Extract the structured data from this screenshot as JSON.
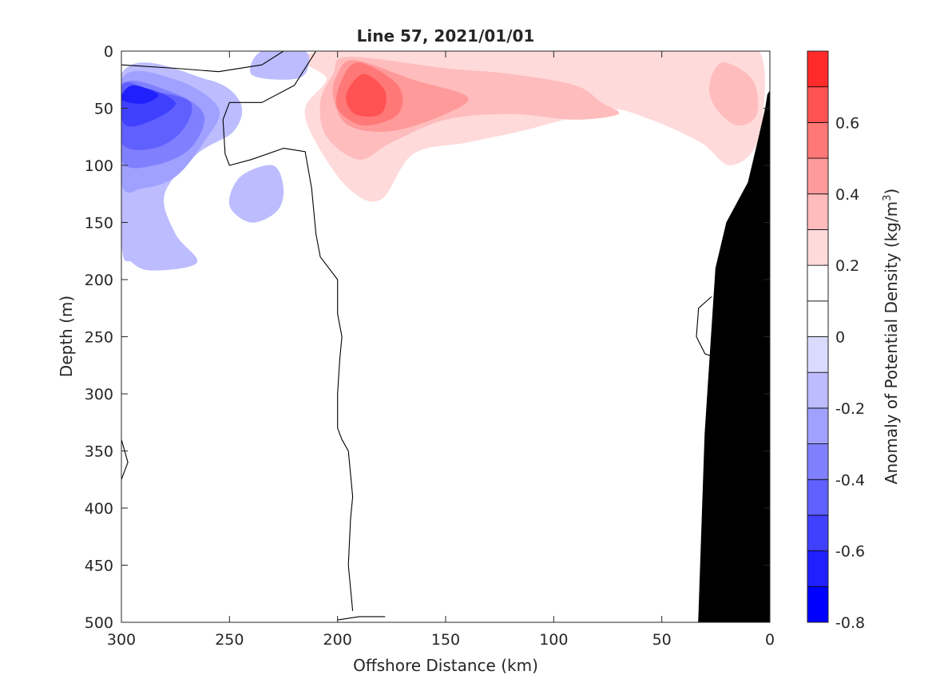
{
  "chart_data": {
    "type": "heatmap",
    "title": "Line 57, 2021/01/01",
    "xlabel": "Offshore Distance (km)",
    "ylabel": "Depth (m)",
    "xlim": [
      300,
      0
    ],
    "ylim": [
      500,
      0
    ],
    "x_reversed": true,
    "y_reversed": true,
    "xticks": [
      300,
      250,
      200,
      150,
      100,
      50,
      0
    ],
    "yticks": [
      0,
      50,
      100,
      150,
      200,
      250,
      300,
      350,
      400,
      450,
      500
    ],
    "grid": false,
    "colorbar": {
      "label": "Anomaly of Potential Density (kg/m",
      "label_superscript": "3",
      "label_close": ")",
      "range": [
        -0.8,
        0.8
      ],
      "ticks": [
        -0.8,
        -0.6,
        -0.4,
        -0.2,
        0,
        0.2,
        0.4,
        0.6
      ],
      "tick_labels": [
        "-0.8",
        "-0.6",
        "-0.4",
        "-0.2",
        "0",
        "0.2",
        "0.4",
        "0.6"
      ],
      "levels": [
        -0.8,
        -0.7,
        -0.6,
        -0.5,
        -0.4,
        -0.3,
        -0.2,
        -0.1,
        0,
        0.1,
        0.2,
        0.3,
        0.4,
        0.5,
        0.6,
        0.7,
        0.8
      ],
      "colors": [
        "#0000ff",
        "#2020ff",
        "#4040ff",
        "#6060ff",
        "#8080ff",
        "#a0a0ff",
        "#bcbcff",
        "#dadaff",
        "#ffffff",
        "#ffffff",
        "#ffdada",
        "#ffbcbc",
        "#ff9a9a",
        "#ff7878",
        "#ff5252",
        "#ff2a2a",
        "#ff0000"
      ]
    },
    "fields": [
      {
        "sign": "pos",
        "level": 0.1,
        "points": [
          [
            210,
            0
          ],
          [
            30,
            0
          ],
          [
            2,
            0
          ],
          [
            1,
            90
          ],
          [
            8,
            140
          ],
          [
            20,
            200
          ],
          [
            27,
            215
          ],
          [
            35,
            190
          ],
          [
            55,
            150
          ],
          [
            75,
            110
          ],
          [
            95,
            130
          ],
          [
            120,
            120
          ],
          [
            140,
            130
          ],
          [
            155,
            160
          ],
          [
            170,
            185
          ],
          [
            180,
            205
          ],
          [
            195,
            195
          ],
          [
            210,
            150
          ],
          [
            220,
            110
          ],
          [
            228,
            70
          ],
          [
            225,
            50
          ],
          [
            205,
            35
          ],
          [
            195,
            20
          ]
        ]
      },
      {
        "sign": "pos",
        "level": 0.2,
        "points": [
          [
            205,
            0
          ],
          [
            35,
            0
          ],
          [
            5,
            0
          ],
          [
            5,
            75
          ],
          [
            18,
            100
          ],
          [
            32,
            80
          ],
          [
            55,
            60
          ],
          [
            75,
            50
          ],
          [
            95,
            60
          ],
          [
            115,
            70
          ],
          [
            140,
            80
          ],
          [
            165,
            90
          ],
          [
            180,
            130
          ],
          [
            195,
            120
          ],
          [
            210,
            80
          ],
          [
            215,
            50
          ],
          [
            205,
            25
          ]
        ]
      },
      {
        "sign": "pos",
        "level": 0.3,
        "points": [
          [
            195,
            5
          ],
          [
            150,
            15
          ],
          [
            120,
            20
          ],
          [
            90,
            30
          ],
          [
            78,
            45
          ],
          [
            70,
            55
          ],
          [
            90,
            60
          ],
          [
            120,
            55
          ],
          [
            150,
            60
          ],
          [
            175,
            80
          ],
          [
            190,
            95
          ],
          [
            205,
            75
          ],
          [
            208,
            45
          ],
          [
            202,
            20
          ]
        ]
      },
      {
        "sign": "pos",
        "level": 0.3,
        "points": [
          [
            22,
            10
          ],
          [
            8,
            25
          ],
          [
            6,
            55
          ],
          [
            15,
            65
          ],
          [
            25,
            50
          ],
          [
            28,
            30
          ]
        ]
      },
      {
        "sign": "pos",
        "level": 0.4,
        "points": [
          [
            192,
            8
          ],
          [
            165,
            25
          ],
          [
            140,
            40
          ],
          [
            150,
            55
          ],
          [
            175,
            70
          ],
          [
            195,
            65
          ],
          [
            202,
            40
          ],
          [
            200,
            20
          ]
        ]
      },
      {
        "sign": "pos",
        "level": 0.5,
        "points": [
          [
            190,
            10
          ],
          [
            172,
            30
          ],
          [
            172,
            55
          ],
          [
            188,
            65
          ],
          [
            200,
            50
          ],
          [
            198,
            25
          ]
        ]
      },
      {
        "sign": "pos",
        "level": 0.6,
        "points": [
          [
            188,
            20
          ],
          [
            178,
            35
          ],
          [
            180,
            55
          ],
          [
            192,
            55
          ],
          [
            196,
            38
          ]
        ]
      },
      {
        "sign": "neg",
        "level": -0.1,
        "points": [
          [
            300,
            20
          ],
          [
            260,
            25
          ],
          [
            245,
            45
          ],
          [
            248,
            70
          ],
          [
            265,
            90
          ],
          [
            280,
            125
          ],
          [
            275,
            160
          ],
          [
            265,
            185
          ],
          [
            285,
            192
          ],
          [
            295,
            185
          ],
          [
            300,
            165
          ]
        ]
      },
      {
        "sign": "neg",
        "level": -0.1,
        "points": [
          [
            230,
            100
          ],
          [
            245,
            110
          ],
          [
            250,
            135
          ],
          [
            240,
            150
          ],
          [
            228,
            140
          ],
          [
            225,
            120
          ]
        ]
      },
      {
        "sign": "neg",
        "level": -0.1,
        "points": [
          [
            235,
            0
          ],
          [
            215,
            0
          ],
          [
            215,
            20
          ],
          [
            225,
            25
          ],
          [
            240,
            20
          ]
        ]
      },
      {
        "sign": "neg",
        "level": -0.2,
        "points": [
          [
            300,
            25
          ],
          [
            275,
            25
          ],
          [
            255,
            50
          ],
          [
            262,
            80
          ],
          [
            275,
            110
          ],
          [
            290,
            120
          ],
          [
            300,
            115
          ]
        ]
      },
      {
        "sign": "neg",
        "level": -0.3,
        "points": [
          [
            300,
            30
          ],
          [
            278,
            35
          ],
          [
            262,
            55
          ],
          [
            268,
            85
          ],
          [
            285,
            100
          ],
          [
            300,
            95
          ]
        ]
      },
      {
        "sign": "neg",
        "level": -0.4,
        "points": [
          [
            300,
            30
          ],
          [
            285,
            35
          ],
          [
            268,
            45
          ],
          [
            272,
            70
          ],
          [
            285,
            85
          ],
          [
            300,
            80
          ]
        ]
      },
      {
        "sign": "neg",
        "level": -0.5,
        "points": [
          [
            300,
            40
          ],
          [
            290,
            32
          ],
          [
            275,
            45
          ],
          [
            285,
            60
          ],
          [
            298,
            65
          ]
        ]
      },
      {
        "sign": "neg",
        "level": -0.6,
        "points": [
          [
            295,
            30
          ],
          [
            283,
            38
          ],
          [
            290,
            46
          ],
          [
            300,
            42
          ]
        ]
      }
    ],
    "zero_contours": [
      [
        [
          300,
          12
        ],
        [
          275,
          15
        ],
        [
          255,
          18
        ],
        [
          235,
          12
        ],
        [
          225,
          0
        ]
      ],
      [
        [
          210,
          0
        ],
        [
          220,
          30
        ],
        [
          235,
          45
        ],
        [
          250,
          45
        ],
        [
          253,
          60
        ],
        [
          252,
          90
        ],
        [
          250,
          100
        ],
        [
          240,
          95
        ],
        [
          225,
          85
        ],
        [
          215,
          88
        ],
        [
          212,
          120
        ],
        [
          210,
          160
        ],
        [
          208,
          180
        ],
        [
          200,
          200
        ],
        [
          200,
          230
        ],
        [
          198,
          250
        ],
        [
          199,
          270
        ],
        [
          200,
          300
        ],
        [
          200,
          330
        ],
        [
          198,
          340
        ],
        [
          195,
          350
        ],
        [
          194,
          370
        ],
        [
          193,
          390
        ],
        [
          194,
          410
        ],
        [
          195,
          450
        ],
        [
          193,
          490
        ]
      ],
      [
        [
          27,
          215
        ],
        [
          33,
          225
        ],
        [
          34,
          250
        ],
        [
          30,
          265
        ],
        [
          25,
          268
        ]
      ],
      [
        [
          300,
          340
        ],
        [
          297,
          360
        ],
        [
          300,
          375
        ]
      ],
      [
        [
          200,
          498
        ],
        [
          190,
          495
        ],
        [
          178,
          495
        ]
      ]
    ],
    "land": [
      [
        0,
        35
      ],
      [
        0,
        500
      ],
      [
        33,
        500
      ],
      [
        30,
        335
      ],
      [
        25,
        190
      ],
      [
        20,
        150
      ],
      [
        10,
        115
      ],
      [
        5,
        75
      ],
      [
        2,
        50
      ],
      [
        1,
        38
      ]
    ]
  }
}
